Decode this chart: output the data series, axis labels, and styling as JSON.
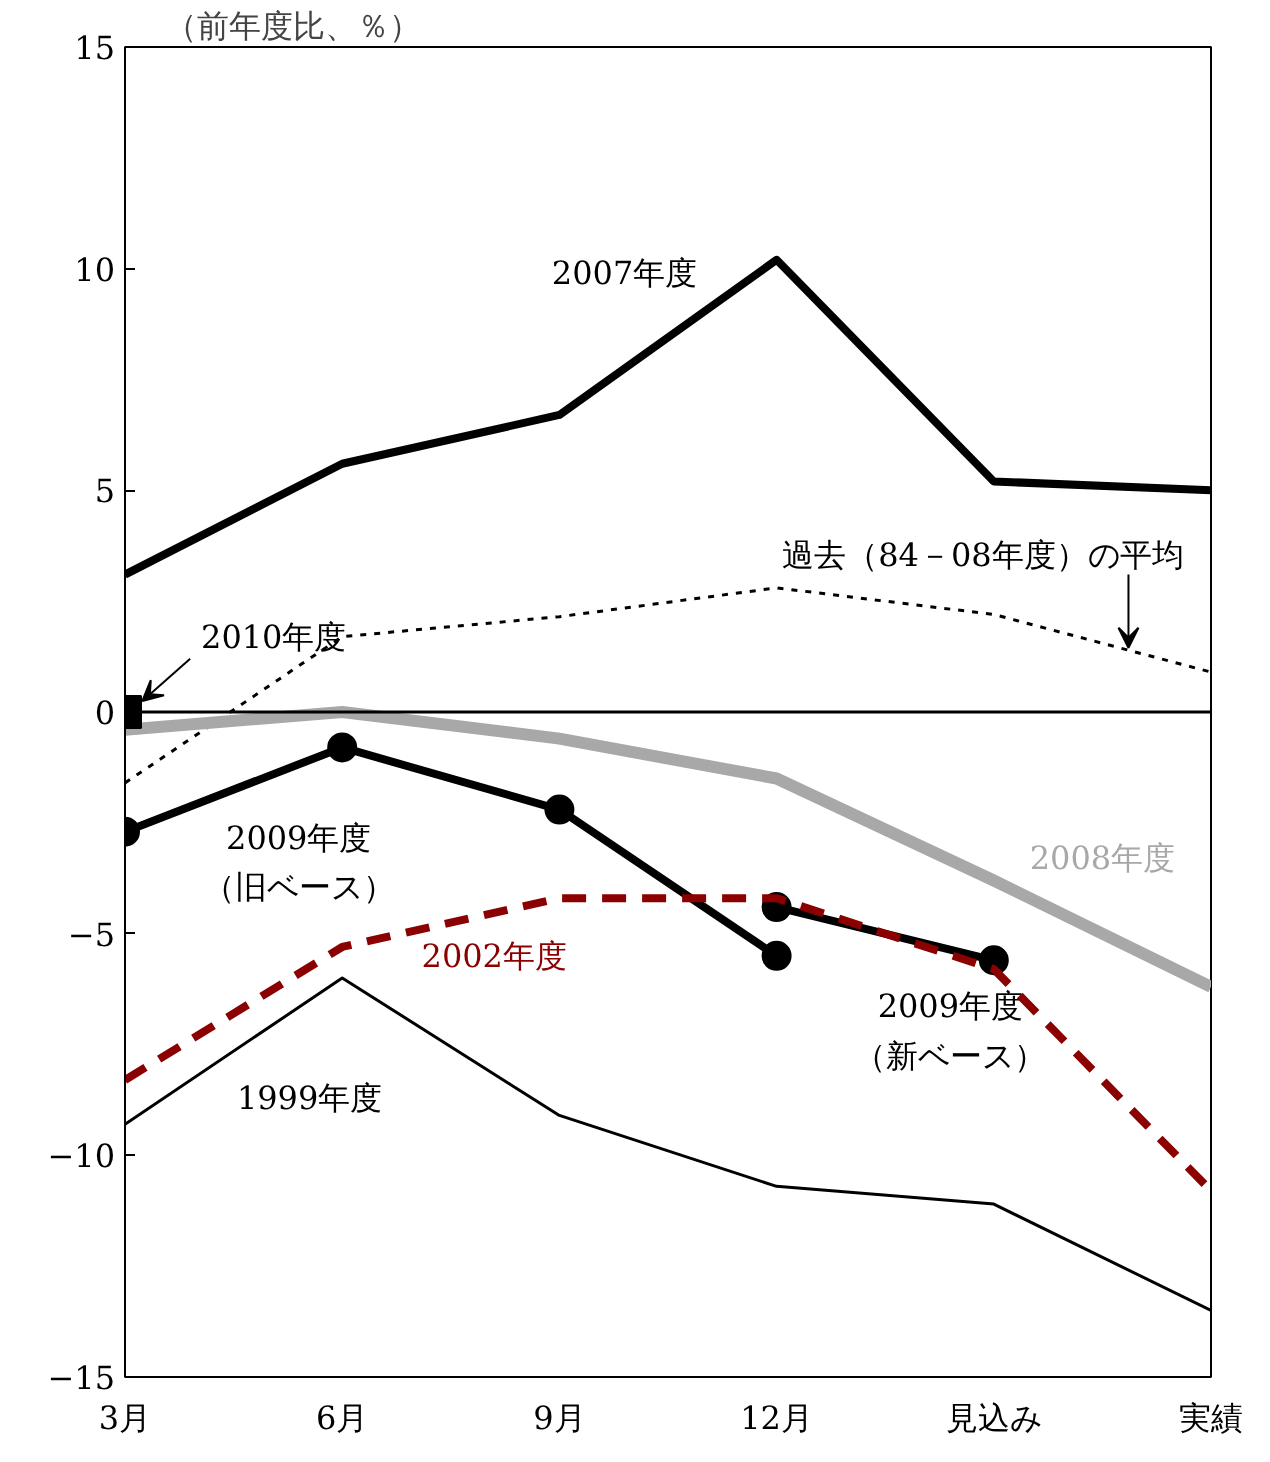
{
  "chart_data": {
    "type": "line",
    "ylabel": "（前年度比、％）",
    "categories": [
      "3月",
      "6月",
      "9月",
      "12月",
      "見込み",
      "実績"
    ],
    "ylim": [
      -15,
      15
    ],
    "yticks": [
      -15,
      -10,
      -5,
      0,
      5,
      10,
      15
    ],
    "grid": false,
    "ref_lines": [
      {
        "axis": "y",
        "value": 0,
        "color": "#000000"
      }
    ],
    "series": [
      {
        "name": "2007年度",
        "color": "#000000",
        "line_style": "solid",
        "marker": "none",
        "values": [
          3.1,
          5.6,
          6.7,
          10.2,
          5.2,
          5.0
        ]
      },
      {
        "name": "過去（84－08年度）の平均",
        "color": "#000000",
        "line_style": "dotted",
        "marker": "none",
        "values": [
          -1.6,
          1.7,
          2.15,
          2.8,
          2.2,
          0.9
        ]
      },
      {
        "name": "2008年度",
        "color": "#a8a8a8",
        "line_style": "solid",
        "marker": "none",
        "values": [
          -0.4,
          0.0,
          -0.6,
          -1.5,
          -3.8,
          -6.2
        ]
      },
      {
        "name": "2009年度（旧ベース）",
        "color": "#000000",
        "line_style": "solid",
        "marker": "circle",
        "values": [
          -2.7,
          -0.8,
          -2.2,
          -5.5,
          null,
          null
        ]
      },
      {
        "name": "2009年度（新ベース）",
        "color": "#000000",
        "line_style": "solid",
        "marker": "circle",
        "values": [
          null,
          null,
          null,
          -4.4,
          -5.6,
          null
        ]
      },
      {
        "name": "2002年度",
        "color": "#8b0000",
        "line_style": "dashed",
        "marker": "none",
        "values": [
          -8.3,
          -5.3,
          -4.2,
          -4.2,
          -5.8,
          -10.8
        ]
      },
      {
        "name": "1999年度",
        "color": "#000000",
        "line_style": "solid",
        "marker": "none",
        "values": [
          -9.3,
          -6.0,
          -9.1,
          -10.7,
          -11.1,
          -13.5
        ]
      },
      {
        "name": "2010年度",
        "color": "#000000",
        "marker": "square",
        "values": [
          0,
          null,
          null,
          null,
          null,
          null
        ]
      }
    ]
  }
}
